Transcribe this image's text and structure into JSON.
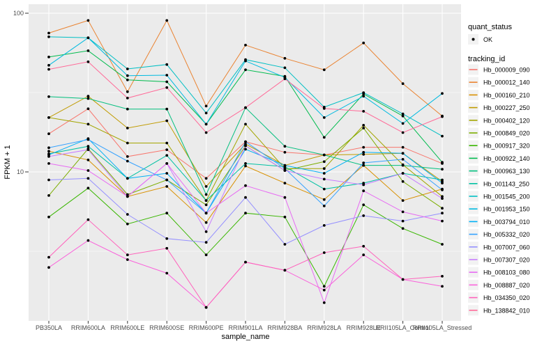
{
  "chart_data": {
    "type": "line",
    "title": "",
    "xlabel": "sample_name",
    "ylabel": "FPKM + 1",
    "y_scale": "log10",
    "ylim": [
      1.15,
      114
    ],
    "y_major_ticks": [
      100,
      10
    ],
    "y_minor_ticks": [
      31.62,
      3.162
    ],
    "grid": true,
    "panel_bg": "#EBEBEB",
    "grid_color": "#FFFFFF",
    "point_color": "#000000",
    "tick_label_color": "#4D4D4D",
    "categories": [
      "PB350LA",
      "RRIM600LA",
      "RRIM600LE",
      "RRIM600SE",
      "RRIM600PE",
      "RRIM901LA",
      "RRIM928BA",
      "RRIM928LA",
      "RRIM928LE",
      "RRII105LA_Control",
      "RRII105LA_Stressed"
    ],
    "legend": {
      "quant_status": {
        "title": "quant_status",
        "items": [
          {
            "label": "OK",
            "marker": "point"
          }
        ]
      },
      "tracking_id": {
        "title": "tracking_id"
      }
    },
    "series": [
      {
        "name": "Hb_000009_090",
        "color": "#F8766D",
        "values": [
          17.4,
          25,
          12.5,
          13.8,
          9.1,
          15.5,
          13.3,
          12.8,
          14.3,
          14.3,
          11.3
        ]
      },
      {
        "name": "Hb_000012_140",
        "color": "#EA8331",
        "values": [
          75,
          90,
          32,
          90,
          26,
          63,
          52,
          44,
          65,
          36,
          22.5
        ]
      },
      {
        "name": "Hb_000160_210",
        "color": "#D89000",
        "values": [
          13.5,
          11.9,
          7.0,
          8.1,
          4.8,
          10.9,
          8.5,
          6.7,
          11.0,
          6.6,
          7.8
        ]
      },
      {
        "name": "Hb_000227_250",
        "color": "#C09B00",
        "values": [
          22,
          30,
          18.9,
          21,
          8.1,
          15,
          11,
          12.8,
          12.9,
          13.1,
          8.7
        ]
      },
      {
        "name": "Hb_000402_120",
        "color": "#A3A500",
        "values": [
          22,
          20,
          15.2,
          15.2,
          6.6,
          20,
          10.5,
          10.5,
          19.7,
          11.1,
          7.0
        ]
      },
      {
        "name": "Hb_000849_020",
        "color": "#7CAE00",
        "values": [
          7.1,
          14,
          7.2,
          8.9,
          6.2,
          14.6,
          10.2,
          11.6,
          18.9,
          8.7,
          5.9
        ]
      },
      {
        "name": "Hb_000917_320",
        "color": "#39B600",
        "values": [
          5.2,
          7.9,
          4.7,
          5.5,
          3.0,
          5.5,
          5.2,
          1.9,
          6.2,
          4.4,
          3.5
        ]
      },
      {
        "name": "Hb_000922_140",
        "color": "#00BB4E",
        "values": [
          53,
          58,
          38,
          37,
          20,
          44,
          40,
          16.5,
          31,
          22.5,
          11.5
        ]
      },
      {
        "name": "Hb_000963_130",
        "color": "#00BF7D",
        "values": [
          29.8,
          29,
          24.9,
          24.9,
          7.2,
          25.4,
          14.5,
          12.8,
          11.0,
          11.0,
          10.4
        ]
      },
      {
        "name": "Hb_001143_250",
        "color": "#00C1A3",
        "values": [
          13,
          14.5,
          9.1,
          12.7,
          6.6,
          11.3,
          10.8,
          7.8,
          8.5,
          9.8,
          8.9
        ]
      },
      {
        "name": "Hb_001545_200",
        "color": "#00BFC4",
        "values": [
          71,
          70,
          44.6,
          47.5,
          23.5,
          51,
          45.3,
          25.6,
          31.6,
          23.2,
          16.8
        ]
      },
      {
        "name": "Hb_001953_150",
        "color": "#00BAE0",
        "values": [
          47,
          70,
          40.4,
          40.7,
          20,
          50,
          39.4,
          22,
          30,
          20.2,
          31.2
        ]
      },
      {
        "name": "Hb_003794_010",
        "color": "#00B0F6",
        "values": [
          12.8,
          16.2,
          9.1,
          9.8,
          5.5,
          13.9,
          11.0,
          9.8,
          13.3,
          13.1,
          8.5
        ]
      },
      {
        "name": "Hb_005332_020",
        "color": "#35A2FF",
        "values": [
          14.2,
          16,
          11.7,
          8.9,
          5.5,
          15.5,
          10.5,
          6.1,
          11.4,
          12.0,
          7.7
        ]
      },
      {
        "name": "Hb_007007_060",
        "color": "#9590FF",
        "values": [
          8.9,
          9.1,
          5.4,
          3.8,
          3.6,
          6.9,
          3.5,
          4.6,
          5.3,
          4.9,
          5.5
        ]
      },
      {
        "name": "Hb_007307_020",
        "color": "#C77CFF",
        "values": [
          12.5,
          13.8,
          7.0,
          11.3,
          4.2,
          14.6,
          10.2,
          9.0,
          8.3,
          9.8,
          6.8
        ]
      },
      {
        "name": "Hb_008103_080",
        "color": "#E76BF3",
        "values": [
          11.3,
          10.2,
          7.0,
          11.3,
          5.5,
          8.2,
          6.9,
          1.5,
          7.6,
          5.6,
          4.9
        ]
      },
      {
        "name": "Hb_008887_020",
        "color": "#FA62DB",
        "values": [
          2.5,
          3.7,
          2.8,
          2.3,
          1.4,
          2.7,
          2.4,
          1.8,
          3.0,
          2.1,
          1.9
        ]
      },
      {
        "name": "Hb_034350_020",
        "color": "#FF62BC",
        "values": [
          2.9,
          5.0,
          3.0,
          3.3,
          1.4,
          2.7,
          2.4,
          3.1,
          3.4,
          2.1,
          2.2
        ]
      },
      {
        "name": "Hb_138842_010",
        "color": "#FF6A98",
        "values": [
          44.3,
          49.4,
          29.2,
          34,
          17.7,
          25.4,
          38.6,
          25.1,
          24.1,
          17.7,
          22.3
        ]
      }
    ]
  }
}
